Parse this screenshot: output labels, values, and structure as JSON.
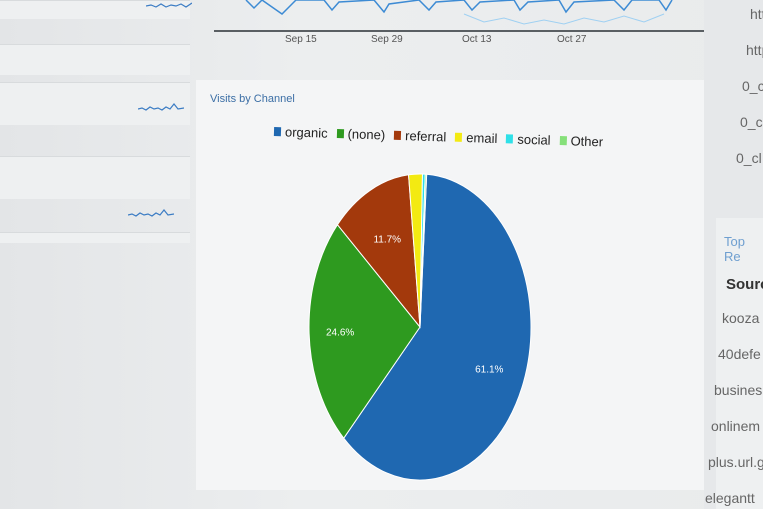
{
  "timeline": {
    "ticks": [
      "Sep 15",
      "Sep 29",
      "Oct 13",
      "Oct 27"
    ]
  },
  "panel": {
    "title": "Visits by Channel"
  },
  "chart_data": {
    "type": "pie",
    "title": "Visits by Channel",
    "categories": [
      "organic",
      "(none)",
      "referral",
      "email",
      "social",
      "Other"
    ],
    "values": [
      61.1,
      24.6,
      11.7,
      2.0,
      0.4,
      0.2
    ],
    "data_labels": [
      "61.1%",
      "24.6%",
      "11.7%",
      "",
      "",
      ""
    ],
    "colors": [
      "#1f68b1",
      "#2e9a1f",
      "#a3390c",
      "#f3ea12",
      "#2ee0e8",
      "#86e07a"
    ],
    "legend_position": "top"
  },
  "right_panel": {
    "rows": [
      "htt",
      "http",
      "0_c",
      "0_c",
      "0_cl"
    ],
    "section_title": "Top Re",
    "column_header": "Sourc",
    "sources": [
      "kooza",
      "40defe",
      "busines",
      "onlinem",
      "plus.url.g",
      "elegantt"
    ]
  }
}
